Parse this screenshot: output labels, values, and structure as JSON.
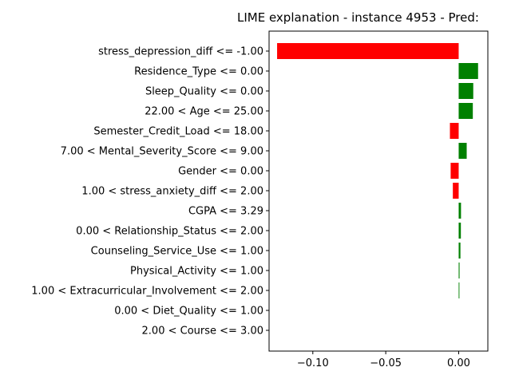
{
  "chart_data": {
    "type": "bar",
    "orientation": "horizontal",
    "title": "LIME explanation - instance 4953 - Pred:",
    "xlabel": "",
    "ylabel": "",
    "xlim": [
      -0.13,
      0.02
    ],
    "xticks": [
      {
        "value": -0.1,
        "label": "−0.10"
      },
      {
        "value": -0.05,
        "label": "−0.05"
      },
      {
        "value": 0.0,
        "label": "0.00"
      }
    ],
    "grid": false,
    "legend": false,
    "positive_color": "#008000",
    "negative_color": "#ff0000",
    "categories": [
      "stress_depression_diff <= -1.00",
      "Residence_Type <= 0.00",
      "Sleep_Quality <= 0.00",
      "22.00 < Age <= 25.00",
      "Semester_Credit_Load <= 18.00",
      "7.00 < Mental_Severity_Score <= 9.00",
      "Gender <= 0.00",
      "1.00 < stress_anxiety_diff <= 2.00",
      "CGPA <= 3.29",
      "0.00 < Relationship_Status <= 2.00",
      "Counseling_Service_Use <= 1.00",
      "Physical_Activity <= 1.00",
      "1.00 < Extracurricular_Involvement <= 2.00",
      "0.00 < Diet_Quality <= 1.00",
      "2.00 < Course <= 3.00"
    ],
    "values": [
      -0.1245,
      0.0133,
      0.01,
      0.0097,
      -0.006,
      0.0055,
      -0.0055,
      -0.004,
      0.0016,
      0.0015,
      0.0012,
      0.0006,
      0.0005,
      0.0,
      0.0
    ]
  }
}
